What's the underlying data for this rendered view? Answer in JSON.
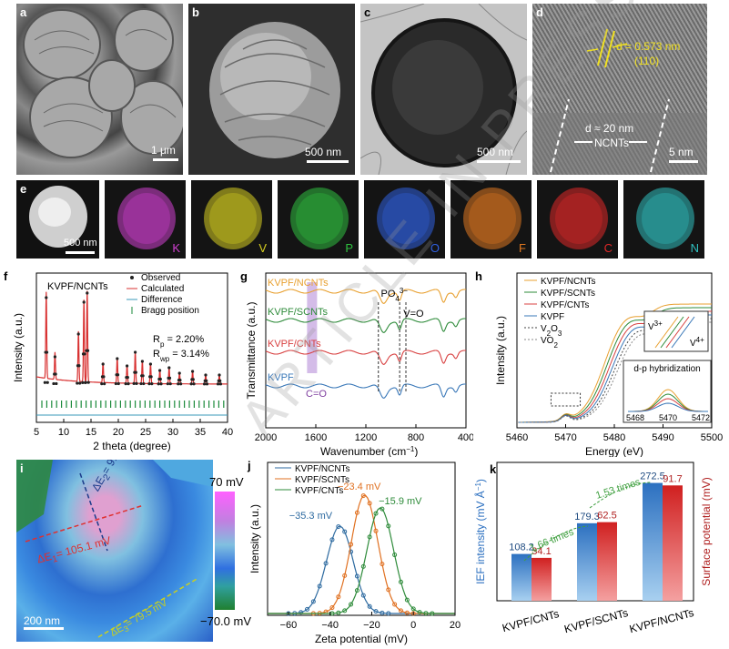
{
  "panels": {
    "a": "a",
    "b": "b",
    "c": "c",
    "d": "d",
    "e": "e",
    "f": "f",
    "g": "g",
    "h": "h",
    "i": "i",
    "j": "j",
    "k": "k"
  },
  "micrographs": {
    "a": {
      "scale": "1 μm"
    },
    "b": {
      "scale": "500 nm"
    },
    "c": {
      "scale": "500 nm"
    },
    "d": {
      "scale": "5 nm",
      "d_spacing": "d = 0.573 nm",
      "plane": "(110)",
      "tube_d": "d ≈ 20 nm",
      "tube_label": "NCNTs"
    }
  },
  "eds": {
    "scale": "500 nm",
    "elements": [
      {
        "symbol": "K",
        "color": "#d040d0"
      },
      {
        "symbol": "V",
        "color": "#d8d020"
      },
      {
        "symbol": "P",
        "color": "#30c040"
      },
      {
        "symbol": "O",
        "color": "#3060e0"
      },
      {
        "symbol": "F",
        "color": "#e07820"
      },
      {
        "symbol": "C",
        "color": "#e02828"
      },
      {
        "symbol": "N",
        "color": "#30c0c0"
      }
    ]
  },
  "watermark": "ARTICLE IN PRESS",
  "kpfm": {
    "scale": "200 nm",
    "colorbar_top": "70 mV",
    "colorbar_bottom": "−70.0 mV",
    "line1": "ΔE",
    "line1_sub": "2",
    "line1_val": "= 91.6 mV",
    "line2": "ΔE",
    "line2_sub": "1",
    "line2_val": "= 105.1 mV",
    "line3": "ΔE",
    "line3_sub": "3",
    "line3_val": "= 79.5 mV"
  },
  "chart_data": [
    {
      "panel": "f",
      "type": "line",
      "title": "KVPF/NCNTs",
      "xlabel": "2 theta (degree)",
      "ylabel": "Intensity (a.u.)",
      "xlim": [
        5,
        40
      ],
      "xticks": [
        "5",
        "10",
        "15",
        "20",
        "25",
        "30",
        "35",
        "40"
      ],
      "legend": [
        "Observed",
        "Calculated",
        "Difference",
        "Bragg position"
      ],
      "peaks_2theta": [
        6.8,
        8.4,
        12.7,
        13.7,
        14.3,
        17.2,
        19.8,
        21.6,
        23.1,
        24.4,
        25.9,
        27.6,
        29.3,
        31.2,
        33.6,
        36.0,
        38.5
      ],
      "peaks_rel": [
        0.95,
        0.3,
        0.55,
        0.9,
        1.0,
        0.22,
        0.28,
        0.2,
        0.35,
        0.25,
        0.22,
        0.15,
        0.18,
        0.12,
        0.14,
        0.1,
        0.1
      ],
      "rp": "R",
      "rp_sub": "p",
      "rp_val": "= 2.20%",
      "rwp": "R",
      "rwp_sub": "wp",
      "rwp_val": "= 3.14%"
    },
    {
      "panel": "g",
      "type": "line",
      "xlabel": "Wavenumber (cm",
      "xlabel_sup": "−1",
      "xlabel_end": ")",
      "ylabel": "Transmittance (a.u.)",
      "xlim": [
        2000,
        400
      ],
      "xticks": [
        "2000",
        "1600",
        "1200",
        "800",
        "400"
      ],
      "series": [
        {
          "name": "KVPF/NCNTs",
          "color": "#e8a030"
        },
        {
          "name": "KVPF/SCNTs",
          "color": "#2e8b3a"
        },
        {
          "name": "KVPF/CNTs",
          "color": "#d84040"
        },
        {
          "name": "KVPF",
          "color": "#3a78b8"
        }
      ],
      "annotations": {
        "po4": "PO",
        "po4_sub": "4",
        "po4_sup": "3−",
        "vo": "V=O",
        "co": "C=O"
      }
    },
    {
      "panel": "h",
      "type": "line",
      "xlabel": "Energy (eV)",
      "ylabel": "Intensity (a.u.)",
      "xlim": [
        5460,
        5500
      ],
      "xticks": [
        "5460",
        "5470",
        "5480",
        "5490",
        "5500"
      ],
      "series": [
        {
          "name": "KVPF/NCNTs",
          "color": "#e8a030"
        },
        {
          "name": "KVPF/SCNTs",
          "color": "#2e8b3a"
        },
        {
          "name": "KVPF/CNTs",
          "color": "#d84040"
        },
        {
          "name": "KVPF",
          "color": "#3a78b8"
        },
        {
          "name": "V",
          "sub": "2",
          "name2": "O",
          "sub2": "3",
          "color": "#444444"
        },
        {
          "name": "VO",
          "sub": "2",
          "color": "#888888"
        }
      ],
      "inset_top": {
        "v3": "V",
        "v3_sup": "3+",
        "v4": "V",
        "v4_sup": "4+"
      },
      "inset_bottom": {
        "title": "d-p hybridization",
        "xticks": [
          "5468",
          "5470",
          "5472"
        ]
      }
    },
    {
      "panel": "j",
      "type": "line",
      "xlabel": "Zeta potential (mV)",
      "ylabel": "Intensity (a.u.)",
      "xlim": [
        -70,
        20
      ],
      "xticks": [
        "−60",
        "−40",
        "−20",
        "0",
        "20"
      ],
      "series": [
        {
          "name": "KVPF/NCNTs",
          "color": "#2d6aa0",
          "peak": -35.3,
          "label": "−35.3 mV"
        },
        {
          "name": "KVPF/SCNTs",
          "color": "#e07020",
          "peak": -23.4,
          "label": "−23.4 mV"
        },
        {
          "name": "KVPF/CNTs",
          "color": "#2e8b3a",
          "peak": -15.9,
          "label": "−15.9 mV"
        }
      ]
    },
    {
      "panel": "k",
      "type": "bar",
      "categories": [
        "KVPF/CNTs",
        "KVPF/SCNTs",
        "KVPF/NCNTs"
      ],
      "ylabel_left": "IEF intensity (mV Å",
      "ylabel_left_sup": "−1",
      "ylabel_left_end": ")",
      "ylabel_right": "Surface potential (mV)",
      "series": [
        {
          "name": "IEF intensity",
          "color": "#4a90d0",
          "values": [
            108.2,
            179.3,
            272.5
          ],
          "labels": [
            "108.2",
            "179.3",
            "272.5"
          ]
        },
        {
          "name": "Surface potential",
          "color": "#e03030",
          "values": [
            34.1,
            62.5,
            91.7
          ],
          "labels": [
            "34.1",
            "62.5",
            "91.7"
          ]
        }
      ],
      "arrows": [
        "1.66 times",
        "1.53 times"
      ]
    }
  ]
}
